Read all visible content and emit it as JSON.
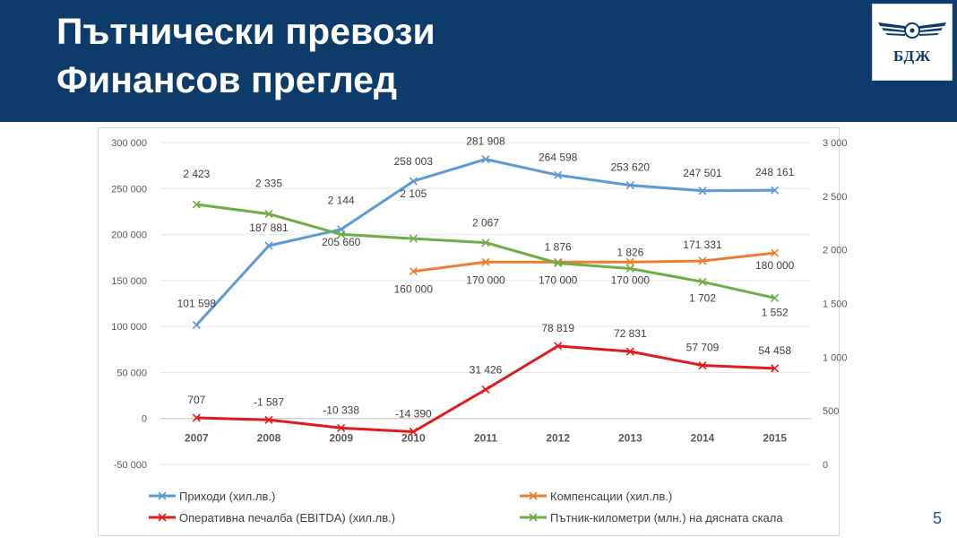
{
  "header": {
    "title_line1": "Пътнически превози",
    "title_line2": "Финансов преглед",
    "logo_text": "БДЖ",
    "bg_color": "#0d3c6a"
  },
  "page_number": "5",
  "chart_data": {
    "type": "line",
    "categories": [
      "2007",
      "2008",
      "2009",
      "2010",
      "2011",
      "2012",
      "2013",
      "2014",
      "2015"
    ],
    "y_left": {
      "range": [
        -50000,
        300000
      ],
      "ticks": [
        -50000,
        0,
        50000,
        100000,
        150000,
        200000,
        250000,
        300000
      ],
      "tick_labels": [
        "-50 000",
        "0",
        "50 000",
        "100 000",
        "150 000",
        "200 000",
        "250 000",
        "300 000"
      ]
    },
    "y_right": {
      "range": [
        0,
        3000
      ],
      "ticks": [
        0,
        500,
        1000,
        1500,
        2000,
        2500,
        3000
      ],
      "tick_labels": [
        "0",
        "500",
        "1 000",
        "1 500",
        "2 000",
        "2 500",
        "3 000"
      ]
    },
    "grid": true,
    "legend_position": "bottom",
    "series": [
      {
        "name": "Приходи (хил.лв.)",
        "axis": "left",
        "color": "#5b9bd5",
        "values": [
          101598,
          187881,
          205660,
          258003,
          281908,
          264598,
          253620,
          247501,
          248161
        ],
        "labels": [
          "101 598",
          "187 881",
          "205 660",
          "258 003",
          "281 908",
          "264 598",
          "253 620",
          "247 501",
          "248 161"
        ]
      },
      {
        "name": "Компенсации (хил.лв.)",
        "axis": "left",
        "color": "#ed7d31",
        "values": [
          null,
          null,
          null,
          160000,
          170000,
          170000,
          170000,
          171331,
          180000
        ],
        "labels": [
          "",
          "",
          "",
          "160 000",
          "170 000",
          "170 000",
          "170 000",
          "171 331",
          "180 000"
        ]
      },
      {
        "name": "Оперативна печалба (EBITDA) (хил.лв.)",
        "axis": "left",
        "color": "#e31a1c",
        "values": [
          707,
          -1587,
          -10338,
          -14390,
          31426,
          78819,
          72831,
          57709,
          54458
        ],
        "labels": [
          "707",
          "-1 587",
          "-10 338",
          "-14 390",
          "31 426",
          "78 819",
          "72 831",
          "57 709",
          "54 458"
        ]
      },
      {
        "name": "Пътник-километри (млн.) на дясната скала",
        "axis": "right",
        "color": "#70ad47",
        "values": [
          2423,
          2335,
          2144,
          2105,
          2067,
          1876,
          1826,
          1702,
          1552
        ],
        "labels": [
          "2 423",
          "2 335",
          "2 144",
          "2 105",
          "2 067",
          "1 876",
          "1 826",
          "1 702",
          "1 552"
        ]
      }
    ]
  }
}
